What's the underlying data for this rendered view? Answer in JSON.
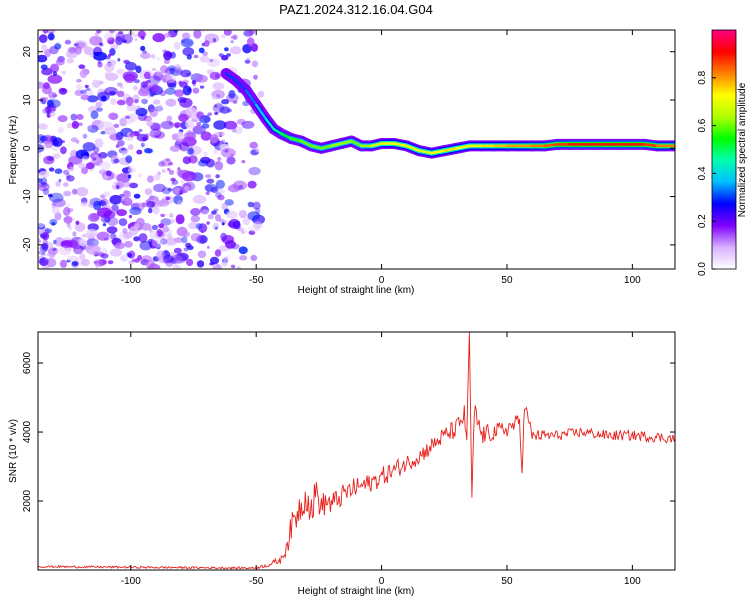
{
  "chart_data": [
    {
      "type": "heatmap",
      "title": "PAZ1.2024.312.16.04.G04",
      "xlabel": "Height of straight line (km)",
      "ylabel": "Frequency (Hz)",
      "xlim": [
        -137,
        117
      ],
      "ylim": [
        -25,
        24.5
      ],
      "x_ticks": [
        -100,
        -50,
        0,
        50,
        100
      ],
      "x_tick_labels": [
        "-100",
        "-50",
        "0",
        "50",
        "100"
      ],
      "y_ticks": [
        -20,
        -10,
        0,
        10,
        20
      ],
      "y_tick_labels": [
        "-20",
        "-10",
        "0",
        "10",
        "20"
      ],
      "colorbar": {
        "label": "Normalized spectral amplitude",
        "range": [
          0,
          1
        ],
        "ticks": [
          0.0,
          0.2,
          0.4,
          0.6,
          0.8
        ],
        "tick_labels": [
          "0.0",
          "0.2",
          "0.4",
          "0.6",
          "0.8"
        ],
        "colors": [
          "#ffffff",
          "#d8b0ff",
          "#7f00ff",
          "#0000ff",
          "#00bfff",
          "#00ffb0",
          "#00ff00",
          "#b0ff00",
          "#ffff00",
          "#ff8000",
          "#ff0000",
          "#ff0080"
        ]
      },
      "noise_region": {
        "x_range": [
          -137,
          -47
        ],
        "f_range": [
          -25,
          24.5
        ],
        "amplitude_range": [
          0.0,
          0.15
        ]
      },
      "signal_ridge": {
        "x": [
          -62,
          -58,
          -54,
          -50,
          -46,
          -43,
          -40,
          -36,
          -32,
          -28,
          -24,
          -20,
          -16,
          -12,
          -8,
          -4,
          0,
          5,
          10,
          15,
          20,
          25,
          30,
          35,
          40,
          45,
          50,
          55,
          60,
          65,
          70,
          75,
          80,
          85,
          90,
          95,
          100,
          105,
          110,
          117
        ],
        "frequency": [
          15.5,
          14,
          12,
          9,
          6,
          4,
          3,
          2,
          1.5,
          0.5,
          0,
          0.5,
          1,
          1.5,
          0.5,
          0.5,
          1,
          1,
          0.5,
          -0.5,
          -1,
          -0.5,
          0,
          0.5,
          0.5,
          0.5,
          0.5,
          0.5,
          0.5,
          0.5,
          0.8,
          0.8,
          0.8,
          0.8,
          0.8,
          0.8,
          0.8,
          0.8,
          0.5,
          0.5
        ],
        "amplitude": [
          0.3,
          0.3,
          0.3,
          0.35,
          0.4,
          0.45,
          0.5,
          0.55,
          0.6,
          0.6,
          0.6,
          0.6,
          0.65,
          0.6,
          0.6,
          0.65,
          0.7,
          0.75,
          0.7,
          0.7,
          0.7,
          0.75,
          0.75,
          0.7,
          0.75,
          0.75,
          0.8,
          0.8,
          0.8,
          0.85,
          0.85,
          0.9,
          0.9,
          0.9,
          0.9,
          0.9,
          0.9,
          0.9,
          0.85,
          0.8
        ]
      }
    },
    {
      "type": "line",
      "title": "",
      "xlabel": "Height of straight line (km)",
      "ylabel": "SNR (10 * v/v)",
      "xlim": [
        -137,
        117
      ],
      "ylim": [
        0,
        6900
      ],
      "x_ticks": [
        -100,
        -50,
        0,
        50,
        100
      ],
      "x_tick_labels": [
        "-100",
        "-50",
        "0",
        "50",
        "100"
      ],
      "y_ticks": [
        2000,
        4000,
        6000
      ],
      "y_tick_labels": [
        "2000",
        "4000",
        "6000"
      ],
      "series": [
        {
          "color": "#e8201c",
          "x": [
            -137,
            -120,
            -100,
            -80,
            -60,
            -50,
            -45,
            -40,
            -38,
            -36,
            -34,
            -32,
            -30,
            -28,
            -26,
            -24,
            -22,
            -20,
            -15,
            -10,
            -5,
            0,
            5,
            10,
            15,
            20,
            25,
            30,
            33,
            34,
            35,
            36,
            37,
            40,
            45,
            50,
            55,
            56,
            57,
            60,
            70,
            80,
            90,
            100,
            110,
            117
          ],
          "y": [
            100,
            90,
            80,
            70,
            60,
            60,
            150,
            300,
            700,
            1200,
            1600,
            1900,
            2200,
            1700,
            2300,
            1800,
            2000,
            1900,
            2200,
            2400,
            2500,
            2700,
            2900,
            3100,
            3300,
            3600,
            3900,
            4100,
            4500,
            3800,
            6900,
            2100,
            4600,
            3900,
            4000,
            4100,
            4300,
            2800,
            4800,
            3900,
            3900,
            4000,
            3900,
            3900,
            3850,
            3800
          ],
          "noise_amplitude": [
            30,
            30,
            30,
            30,
            30,
            30,
            60,
            120,
            300,
            400,
            450,
            500,
            500,
            500,
            450,
            400,
            350,
            350,
            300,
            300,
            280,
            280,
            280,
            250,
            250,
            250,
            250,
            300,
            300,
            300,
            0,
            0,
            300,
            300,
            250,
            250,
            250,
            0,
            250,
            180,
            150,
            150,
            150,
            150,
            150,
            150
          ]
        }
      ]
    }
  ]
}
